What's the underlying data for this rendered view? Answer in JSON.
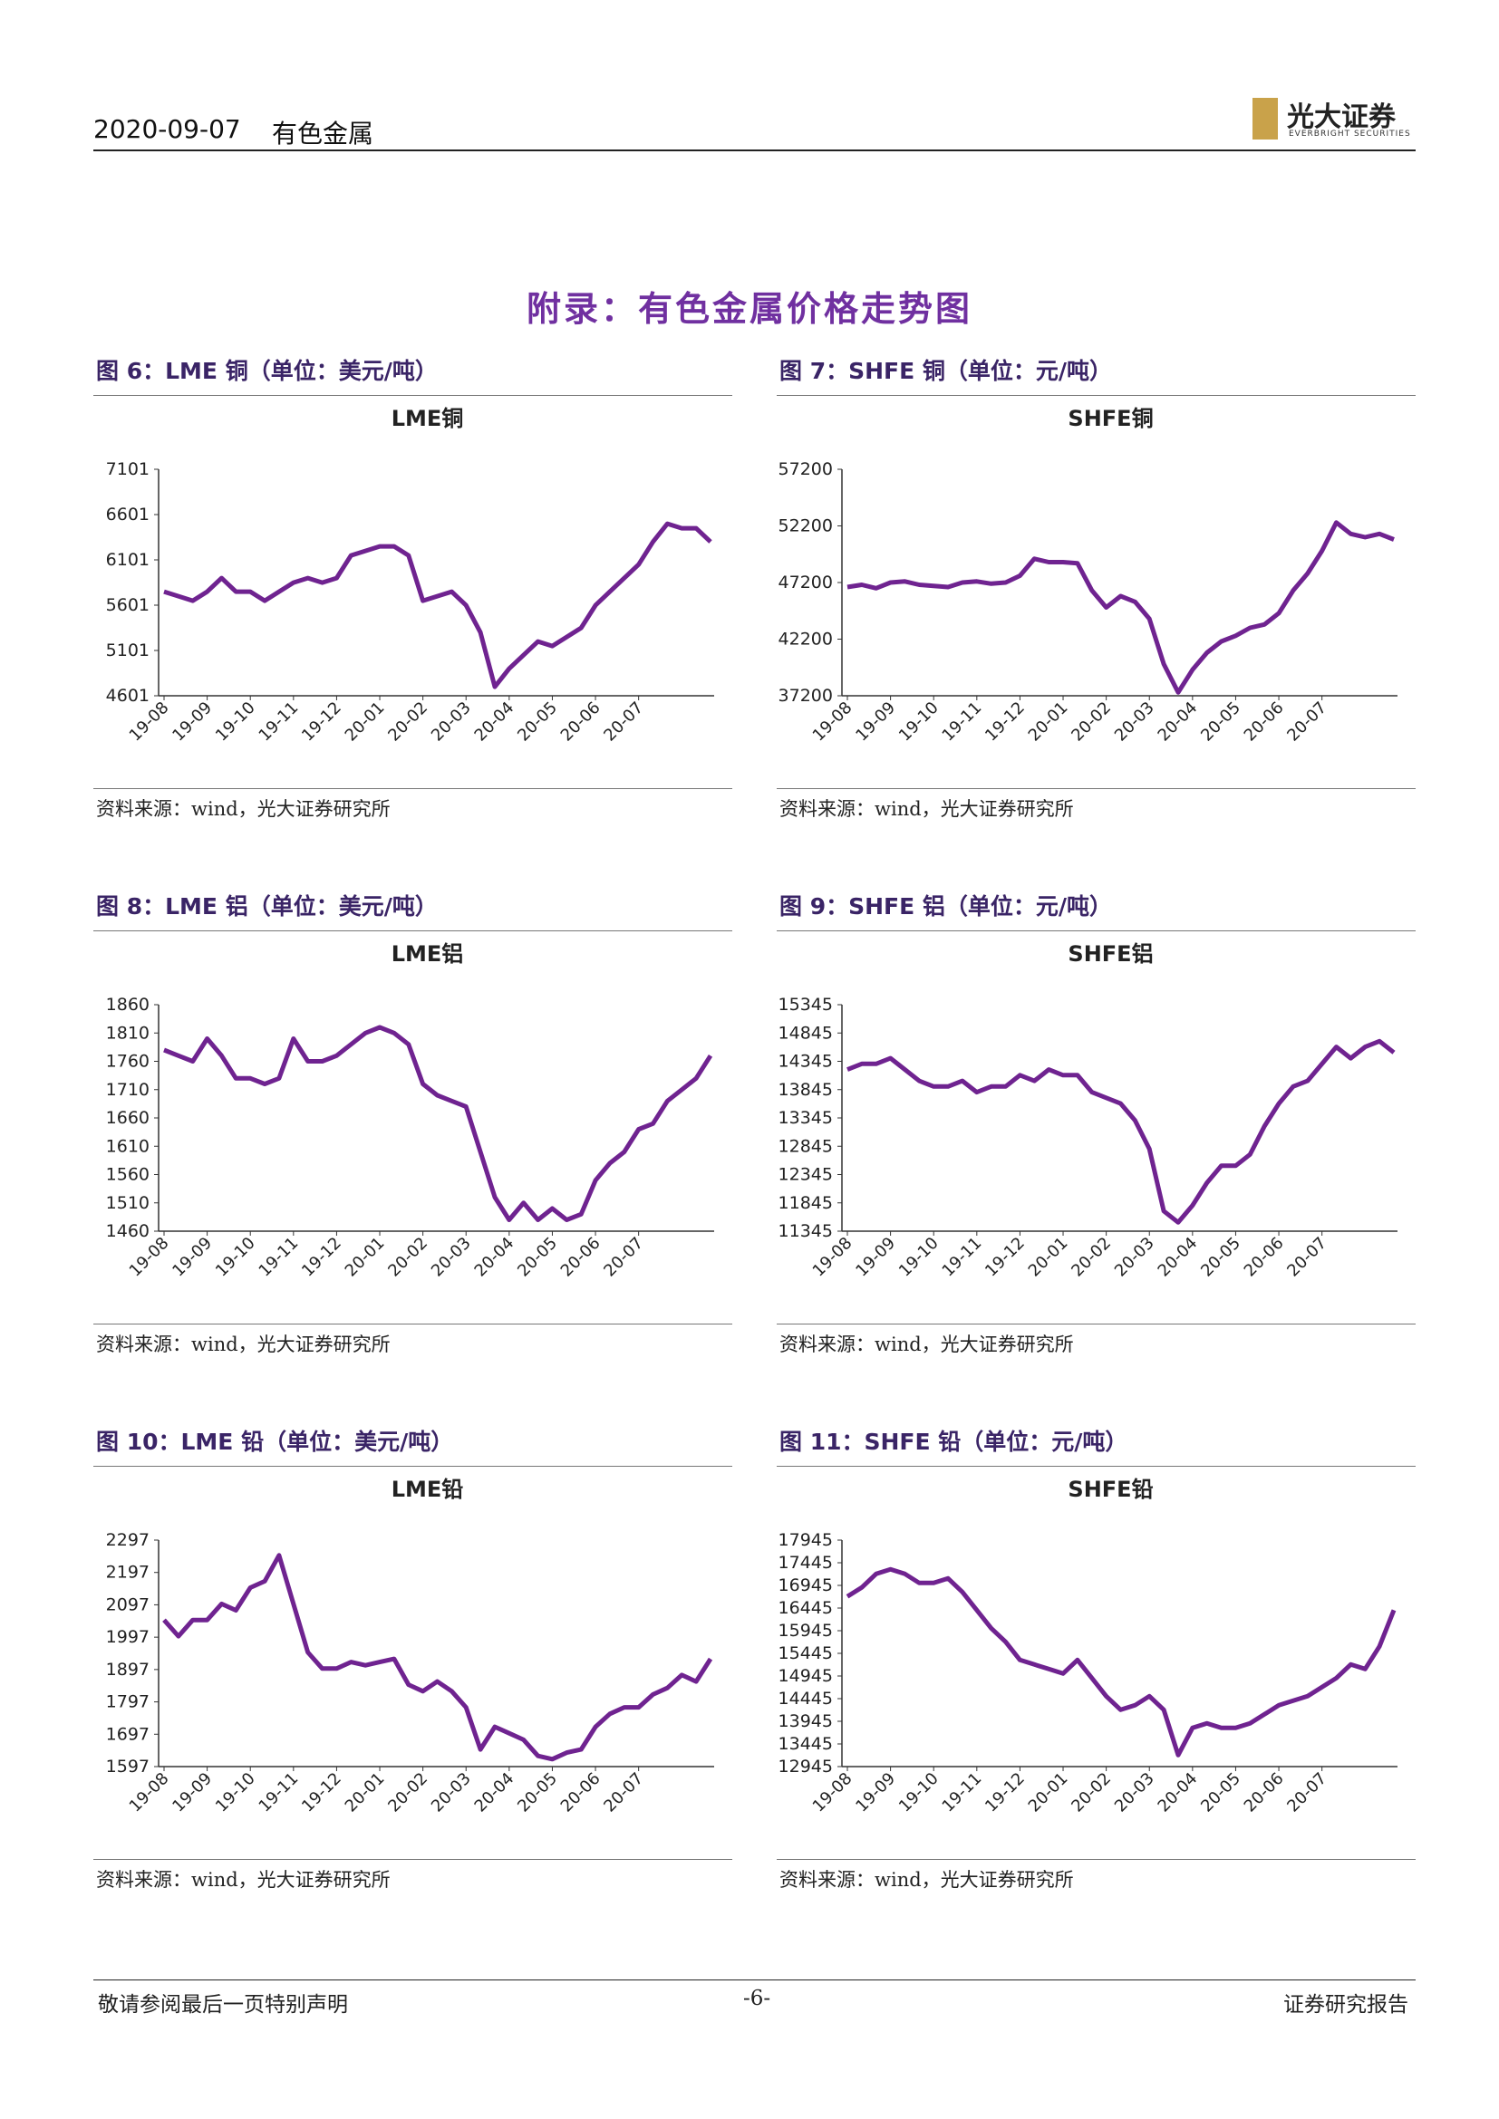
{
  "header": {
    "date": "2020-09-07",
    "sector": "有色金属",
    "logo": "光大证券",
    "logo_en": "EVERBRIGHT SECURITIES"
  },
  "section_title": "附录：有色金属价格走势图",
  "figures": [
    {
      "caption": "图 6：LME 铜（单位：美元/吨）",
      "source": "资料来源：wind，光大证券研究所"
    },
    {
      "caption": "图 7：SHFE 铜（单位：元/吨）",
      "source": "资料来源：wind，光大证券研究所"
    },
    {
      "caption": "图 8：LME 铝（单位：美元/吨）",
      "source": "资料来源：wind，光大证券研究所"
    },
    {
      "caption": "图 9：SHFE 铝（单位：元/吨）",
      "source": "资料来源：wind，光大证券研究所"
    },
    {
      "caption": "图 10：LME 铅（单位：美元/吨）",
      "source": "资料来源：wind，光大证券研究所"
    },
    {
      "caption": "图 11：SHFE 铅（单位：元/吨）",
      "source": "资料来源：wind，光大证券研究所"
    }
  ],
  "chart_data": [
    {
      "type": "line",
      "title": "LME铜",
      "color": "#6f2390",
      "categories": [
        "19-08",
        null,
        null,
        "19-09",
        null,
        null,
        "19-10",
        null,
        null,
        "19-11",
        null,
        null,
        "19-12",
        null,
        null,
        "20-01",
        null,
        null,
        "20-02",
        null,
        null,
        "20-03",
        null,
        null,
        "20-04",
        null,
        null,
        "20-05",
        null,
        null,
        "20-06",
        null,
        null,
        "20-07",
        null,
        null,
        null,
        null,
        null
      ],
      "values": [
        5750,
        5700,
        5650,
        5750,
        5900,
        5750,
        5750,
        5650,
        5750,
        5850,
        5900,
        5850,
        5900,
        6150,
        6200,
        6250,
        6250,
        6150,
        5650,
        5700,
        5750,
        5600,
        5300,
        4700,
        4900,
        5050,
        5200,
        5150,
        5250,
        5350,
        5600,
        5750,
        5900,
        6050,
        6300,
        6500,
        6450,
        6450,
        6300
      ],
      "ylim": [
        4601,
        7101
      ],
      "yticks": [
        4601,
        5101,
        5601,
        6101,
        6601,
        7101
      ]
    },
    {
      "type": "line",
      "title": "SHFE铜",
      "color": "#6f2390",
      "categories": [
        "19-08",
        null,
        null,
        "19-09",
        null,
        null,
        "19-10",
        null,
        null,
        "19-11",
        null,
        null,
        "19-12",
        null,
        null,
        "20-01",
        null,
        null,
        "20-02",
        null,
        null,
        "20-03",
        null,
        null,
        "20-04",
        null,
        null,
        "20-05",
        null,
        null,
        "20-06",
        null,
        null,
        "20-07",
        null,
        null,
        null,
        null,
        null
      ],
      "values": [
        46800,
        47000,
        46700,
        47200,
        47300,
        47000,
        46900,
        46800,
        47200,
        47300,
        47100,
        47200,
        47800,
        49300,
        49000,
        49000,
        48900,
        46500,
        45000,
        46000,
        45500,
        44000,
        40000,
        37500,
        39500,
        41000,
        42000,
        42500,
        43200,
        43500,
        44500,
        46500,
        48000,
        50000,
        52500,
        51500,
        51200,
        51500,
        51000
      ],
      "ylim": [
        37200,
        57200
      ],
      "yticks": [
        37200,
        42200,
        47200,
        52200,
        57200
      ]
    },
    {
      "type": "line",
      "title": "LME铝",
      "color": "#6f2390",
      "categories": [
        "19-08",
        null,
        null,
        "19-09",
        null,
        null,
        "19-10",
        null,
        null,
        "19-11",
        null,
        null,
        "19-12",
        null,
        null,
        "20-01",
        null,
        null,
        "20-02",
        null,
        null,
        "20-03",
        null,
        null,
        "20-04",
        null,
        null,
        "20-05",
        null,
        null,
        "20-06",
        null,
        null,
        "20-07",
        null,
        null,
        null,
        null,
        null
      ],
      "values": [
        1780,
        1770,
        1760,
        1800,
        1770,
        1730,
        1730,
        1720,
        1730,
        1800,
        1760,
        1760,
        1770,
        1790,
        1810,
        1820,
        1810,
        1790,
        1720,
        1700,
        1690,
        1680,
        1600,
        1520,
        1480,
        1510,
        1480,
        1500,
        1480,
        1490,
        1550,
        1580,
        1600,
        1640,
        1650,
        1690,
        1710,
        1730,
        1770
      ],
      "ylim": [
        1460,
        1860
      ],
      "yticks": [
        1460,
        1510,
        1560,
        1610,
        1660,
        1710,
        1760,
        1810,
        1860
      ]
    },
    {
      "type": "line",
      "title": "SHFE铝",
      "color": "#6f2390",
      "categories": [
        "19-08",
        null,
        null,
        "19-09",
        null,
        null,
        "19-10",
        null,
        null,
        "19-11",
        null,
        null,
        "19-12",
        null,
        null,
        "20-01",
        null,
        null,
        "20-02",
        null,
        null,
        "20-03",
        null,
        null,
        "20-04",
        null,
        null,
        "20-05",
        null,
        null,
        "20-06",
        null,
        null,
        "20-07",
        null,
        null,
        null,
        null,
        null
      ],
      "values": [
        14200,
        14300,
        14300,
        14400,
        14200,
        14000,
        13900,
        13900,
        14000,
        13800,
        13900,
        13900,
        14100,
        14000,
        14200,
        14100,
        14100,
        13800,
        13700,
        13600,
        13300,
        12800,
        11700,
        11500,
        11800,
        12200,
        12500,
        12500,
        12700,
        13200,
        13600,
        13900,
        14000,
        14300,
        14600,
        14400,
        14600,
        14700,
        14500
      ],
      "ylim": [
        11345,
        15345
      ],
      "yticks": [
        11345,
        11845,
        12345,
        12845,
        13345,
        13845,
        14345,
        14845,
        15345
      ]
    },
    {
      "type": "line",
      "title": "LME铅",
      "color": "#6f2390",
      "categories": [
        "19-08",
        null,
        null,
        "19-09",
        null,
        null,
        "19-10",
        null,
        null,
        "19-11",
        null,
        null,
        "19-12",
        null,
        null,
        "20-01",
        null,
        null,
        "20-02",
        null,
        null,
        "20-03",
        null,
        null,
        "20-04",
        null,
        null,
        "20-05",
        null,
        null,
        "20-06",
        null,
        null,
        "20-07",
        null,
        null,
        null,
        null,
        null
      ],
      "values": [
        2050,
        2000,
        2050,
        2050,
        2100,
        2080,
        2150,
        2170,
        2250,
        2100,
        1950,
        1900,
        1900,
        1920,
        1910,
        1920,
        1930,
        1850,
        1830,
        1860,
        1830,
        1780,
        1650,
        1720,
        1700,
        1680,
        1630,
        1620,
        1640,
        1650,
        1720,
        1760,
        1780,
        1780,
        1820,
        1840,
        1880,
        1860,
        1930
      ],
      "ylim": [
        1597,
        2297
      ],
      "yticks": [
        1597,
        1697,
        1797,
        1897,
        1997,
        2097,
        2197,
        2297
      ]
    },
    {
      "type": "line",
      "title": "SHFE铅",
      "color": "#6f2390",
      "categories": [
        "19-08",
        null,
        null,
        "19-09",
        null,
        null,
        "19-10",
        null,
        null,
        "19-11",
        null,
        null,
        "19-12",
        null,
        null,
        "20-01",
        null,
        null,
        "20-02",
        null,
        null,
        "20-03",
        null,
        null,
        "20-04",
        null,
        null,
        "20-05",
        null,
        null,
        "20-06",
        null,
        null,
        "20-07",
        null,
        null,
        null,
        null,
        null
      ],
      "values": [
        16700,
        16900,
        17200,
        17300,
        17200,
        17000,
        17000,
        17100,
        16800,
        16400,
        16000,
        15700,
        15300,
        15200,
        15100,
        15000,
        15300,
        14900,
        14500,
        14200,
        14300,
        14500,
        14200,
        13200,
        13800,
        13900,
        13800,
        13800,
        13900,
        14100,
        14300,
        14400,
        14500,
        14700,
        14900,
        15200,
        15100,
        15600,
        16400
      ],
      "ylim": [
        12945,
        17945
      ],
      "yticks": [
        12945,
        13445,
        13945,
        14445,
        14945,
        15445,
        15945,
        16445,
        16945,
        17445,
        17945
      ]
    }
  ]
}
